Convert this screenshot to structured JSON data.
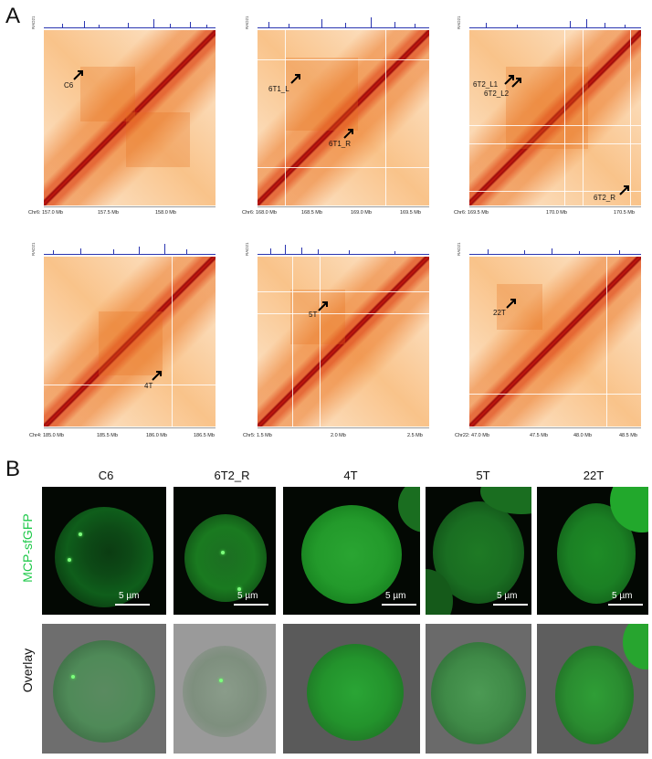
{
  "panels": {
    "a": "A",
    "b": "B"
  },
  "track_label": "RAD21",
  "track_ticks": {
    "top": "0",
    "bottom": "0"
  },
  "hic_maps": [
    {
      "axis": [
        "Chr6: 157.0 Mb",
        "157.5 Mb",
        "158.0 Mb"
      ],
      "marks": [
        "C6"
      ]
    },
    {
      "axis": [
        "Chr6: 168.0 Mb",
        "168.5 Mb",
        "169.0 Mb",
        "169.5 Mb"
      ],
      "marks": [
        "6T1_L",
        "6T1_R"
      ]
    },
    {
      "axis": [
        "Chr6: 169.5 Mb",
        "170.0 Mb",
        "170.5 Mb"
      ],
      "marks": [
        "6T2_L1",
        "6T2_L2",
        "6T2_R"
      ]
    },
    {
      "axis": [
        "Chr4: 185.0 Mb",
        "185.5 Mb",
        "186.0 Mb",
        "186.5 Mb"
      ],
      "marks": [
        "4T"
      ]
    },
    {
      "axis": [
        "Chr5:  1.5 Mb",
        "2.0 Mb",
        "2.5 Mb"
      ],
      "marks": [
        "5T"
      ]
    },
    {
      "axis": [
        "Chr22: 47.0 Mb",
        "47.5 Mb",
        "48.0 Mb",
        "48.5 Mb"
      ],
      "marks": [
        "22T"
      ]
    }
  ],
  "microscopy": {
    "columns": [
      "C6",
      "6T2_R",
      "4T",
      "5T",
      "22T"
    ],
    "rows": [
      "MCP-sfGFP",
      "Overlay"
    ],
    "row_colors": {
      "MCP-sfGFP": "#1fc94a",
      "Overlay": "#111111"
    },
    "scale_label": "5 µm"
  }
}
